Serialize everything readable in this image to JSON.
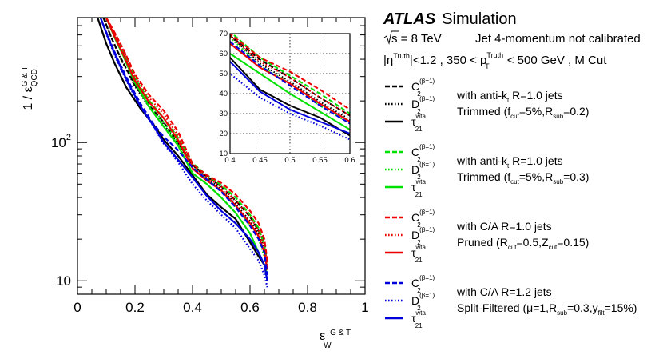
{
  "chart_data": {
    "type": "line",
    "title": "",
    "xlabel": {
      "eps": "ε",
      "sup": "G & T",
      "sub": "W"
    },
    "ylabel": {
      "prefix": "1 / ε",
      "sup": "G & T",
      "sub": "QCD"
    },
    "xlim": [
      0,
      1
    ],
    "ylim": [
      8,
      800
    ],
    "yscale": "log",
    "xticks": [
      "0",
      "0.2",
      "0.4",
      "0.6",
      "0.8",
      "1"
    ],
    "yticks": [
      {
        "value": 100,
        "label": "10",
        "exp": "2"
      },
      {
        "value": 10,
        "label": "10",
        "exp": ""
      }
    ],
    "inset": {
      "xlim": [
        0.4,
        0.6
      ],
      "ylim": [
        10,
        70
      ],
      "grid": true,
      "xticks": [
        "0.4",
        "0.45",
        "0.5",
        "0.55",
        "0.6"
      ],
      "yticks": [
        "10",
        "20",
        "30",
        "40",
        "50",
        "60",
        "70"
      ]
    },
    "header": {
      "atlas": "ATLAS",
      "simulation": "Simulation",
      "sqrt_s_sym": "s",
      "energy": " = 8 TeV",
      "calib": "Jet 4-momentum not calibrated",
      "cut_eta": "|η",
      "cut_eta_sup": "Truth",
      "cut_mid": "|<1.2 , 350 < p",
      "cut_pt_sup": "Truth",
      "cut_pt_sub": "T",
      "cut_end": " < 500 GeV , M Cut"
    },
    "observables": [
      {
        "base": "C",
        "sub": "2",
        "sup": "(β=1)",
        "dash": "dashed"
      },
      {
        "base": "D",
        "sub": "2",
        "sup": "(β=1)",
        "dash": "dotted"
      },
      {
        "base": "τ",
        "sub": "21",
        "sup": "wta",
        "dash": "solid"
      }
    ],
    "groups": [
      {
        "color": "#000000",
        "line1": "with anti-k",
        "line1_sub": "t",
        "line1_rest": " R=1.0 jets",
        "line2": "Trimmed (f",
        "line2_sub1": "cut",
        "line2_mid": "=5%,R",
        "line2_sub2": "sub",
        "line2_end": "=0.2)"
      },
      {
        "color": "#00e000",
        "line1": "with anti-k",
        "line1_sub": "t",
        "line1_rest": " R=1.0 jets",
        "line2": "Trimmed (f",
        "line2_sub1": "cut",
        "line2_mid": "=5%,R",
        "line2_sub2": "sub",
        "line2_end": "=0.3)"
      },
      {
        "color": "#ee0000",
        "line1": "with C/A R=1.0 jets",
        "line1_sub": "",
        "line1_rest": "",
        "line2": "Pruned (R",
        "line2_sub1": "cut",
        "line2_mid": "=0.5,Z",
        "line2_sub2": "cut",
        "line2_end": "=0.15)"
      },
      {
        "color": "#0000dd",
        "line1": "with C/A R=1.2 jets",
        "line1_sub": "",
        "line1_rest": "",
        "line2": "Split-Filtered (μ=1,R",
        "line2_sub1": "sub",
        "line2_mid": "=0.3,y",
        "line2_sub2": "filt",
        "line2_end": "=15%)"
      }
    ],
    "series": [
      {
        "name": "Trimmed R=1.0 f=5% Rsub=0.2 C2",
        "group": 0,
        "dash": "dashed",
        "x": [
          0.09,
          0.12,
          0.15,
          0.2,
          0.25,
          0.3,
          0.35,
          0.4,
          0.45,
          0.5,
          0.55,
          0.6,
          0.63,
          0.65,
          0.66
        ],
        "y": [
          800,
          560,
          410,
          260,
          185,
          140,
          100,
          69,
          57,
          48,
          38,
          29,
          23,
          19,
          13
        ]
      },
      {
        "name": "Trimmed R=1.0 f=5% Rsub=0.2 D2",
        "group": 0,
        "dash": "dotted",
        "x": [
          0.09,
          0.12,
          0.15,
          0.2,
          0.25,
          0.3,
          0.35,
          0.4,
          0.45,
          0.5,
          0.55,
          0.6,
          0.63,
          0.65,
          0.66
        ],
        "y": [
          800,
          560,
          405,
          255,
          180,
          135,
          96,
          69,
          55,
          46,
          36,
          27,
          22,
          17,
          12
        ]
      },
      {
        "name": "Trimmed R=1.0 f=5% Rsub=0.2 tau21",
        "group": 0,
        "dash": "solid",
        "x": [
          0.07,
          0.1,
          0.13,
          0.17,
          0.22,
          0.27,
          0.3,
          0.35,
          0.4,
          0.45,
          0.5,
          0.55,
          0.6,
          0.63,
          0.65,
          0.66
        ],
        "y": [
          800,
          520,
          370,
          250,
          175,
          130,
          105,
          80,
          58,
          42,
          34,
          28,
          19,
          15,
          13,
          11
        ]
      },
      {
        "name": "Trimmed R=1.0 f=5% Rsub=0.3 C2",
        "group": 1,
        "dash": "dashed",
        "x": [
          0.1,
          0.13,
          0.16,
          0.2,
          0.25,
          0.3,
          0.35,
          0.4,
          0.45,
          0.5,
          0.55,
          0.6,
          0.63,
          0.65,
          0.66
        ],
        "y": [
          800,
          600,
          450,
          290,
          200,
          150,
          108,
          71,
          58,
          49,
          40,
          30,
          24,
          18,
          12
        ]
      },
      {
        "name": "Trimmed R=1.0 f=5% Rsub=0.3 D2",
        "group": 1,
        "dash": "dotted",
        "x": [
          0.1,
          0.13,
          0.16,
          0.2,
          0.25,
          0.3,
          0.35,
          0.4,
          0.45,
          0.5,
          0.55,
          0.6,
          0.63,
          0.65,
          0.66
        ],
        "y": [
          800,
          590,
          440,
          280,
          190,
          140,
          100,
          68,
          54,
          45,
          34,
          25,
          20,
          15,
          10
        ]
      },
      {
        "name": "Trimmed R=1.0 f=5% Rsub=0.3 tau21",
        "group": 1,
        "dash": "solid",
        "x": [
          0.1,
          0.13,
          0.16,
          0.2,
          0.25,
          0.3,
          0.35,
          0.4,
          0.45,
          0.5,
          0.55,
          0.6,
          0.63,
          0.65,
          0.66
        ],
        "y": [
          800,
          570,
          420,
          270,
          180,
          130,
          95,
          60,
          50,
          40,
          31,
          22,
          16,
          13,
          10
        ]
      },
      {
        "name": "Pruned R=1.0 C2",
        "group": 2,
        "dash": "dashed",
        "x": [
          0.1,
          0.13,
          0.16,
          0.2,
          0.25,
          0.3,
          0.35,
          0.4,
          0.45,
          0.5,
          0.55,
          0.6,
          0.63,
          0.65,
          0.66
        ],
        "y": [
          800,
          620,
          470,
          310,
          220,
          170,
          120,
          70,
          58,
          51,
          42,
          32,
          26,
          20,
          14
        ]
      },
      {
        "name": "Pruned R=1.0 D2",
        "group": 2,
        "dash": "dotted",
        "x": [
          0.1,
          0.13,
          0.16,
          0.2,
          0.25,
          0.3,
          0.35,
          0.4,
          0.45,
          0.5,
          0.55,
          0.6,
          0.63,
          0.65,
          0.66
        ],
        "y": [
          800,
          610,
          460,
          300,
          210,
          160,
          112,
          69,
          56,
          48,
          38,
          29,
          23,
          18,
          13
        ]
      },
      {
        "name": "Pruned R=1.0 tau21",
        "group": 2,
        "dash": "solid",
        "x": [
          0.1,
          0.13,
          0.16,
          0.2,
          0.25,
          0.3,
          0.35,
          0.4,
          0.45,
          0.5,
          0.55,
          0.6,
          0.63,
          0.65,
          0.66
        ],
        "y": [
          800,
          580,
          430,
          280,
          195,
          150,
          104,
          65,
          53,
          45,
          35,
          26,
          21,
          16,
          12
        ]
      },
      {
        "name": "Split-Filtered R=1.2 C2",
        "group": 3,
        "dash": "dashed",
        "x": [
          0.08,
          0.11,
          0.14,
          0.18,
          0.22,
          0.26,
          0.3,
          0.35,
          0.4,
          0.45,
          0.5,
          0.55,
          0.6,
          0.63,
          0.65,
          0.66
        ],
        "y": [
          800,
          560,
          400,
          270,
          190,
          140,
          110,
          88,
          66,
          54,
          44,
          34,
          25,
          20,
          16,
          11
        ]
      },
      {
        "name": "Split-Filtered R=1.2 D2",
        "group": 3,
        "dash": "dotted",
        "x": [
          0.08,
          0.11,
          0.14,
          0.18,
          0.22,
          0.26,
          0.3,
          0.35,
          0.4,
          0.45,
          0.5,
          0.55,
          0.6,
          0.63,
          0.65,
          0.66
        ],
        "y": [
          800,
          540,
          380,
          255,
          180,
          135,
          98,
          72,
          50,
          38,
          30,
          24,
          17,
          14,
          11,
          9
        ]
      },
      {
        "name": "Split-Filtered R=1.2 tau21",
        "group": 3,
        "dash": "solid",
        "x": [
          0.08,
          0.11,
          0.14,
          0.18,
          0.22,
          0.26,
          0.3,
          0.35,
          0.4,
          0.45,
          0.5,
          0.55,
          0.6,
          0.63,
          0.65,
          0.66
        ],
        "y": [
          800,
          550,
          390,
          260,
          182,
          136,
          100,
          75,
          56,
          41,
          32,
          26,
          20,
          16,
          13,
          10
        ]
      }
    ]
  }
}
